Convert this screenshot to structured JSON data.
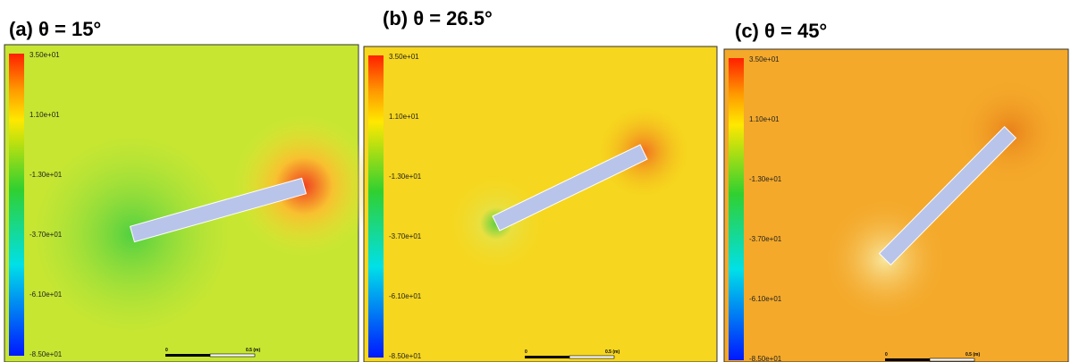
{
  "panels": [
    {
      "label": "(a) θ = 15°",
      "colorbar": [
        "3.50e+01",
        "1.10e+01",
        "-1.30e+01",
        "-3.70e+01",
        "-6.10e+01",
        "-8.50e+01"
      ],
      "scale": [
        "0",
        "0.5 (m)"
      ]
    },
    {
      "label": "(b) θ = 26.5°",
      "colorbar": [
        "3.50e+01",
        "1.10e+01",
        "-1.30e+01",
        "-3.70e+01",
        "-6.10e+01",
        "-8.50e+01"
      ],
      "scale": [
        "0",
        "0.5 (m)"
      ]
    },
    {
      "label": "(c) θ = 45°",
      "colorbar": [
        "3.50e+01",
        "1.10e+01",
        "-1.30e+01",
        "-3.70e+01",
        "-6.10e+01",
        "-8.50e+01"
      ],
      "scale": [
        "0",
        "0.5 (m)"
      ]
    }
  ]
}
